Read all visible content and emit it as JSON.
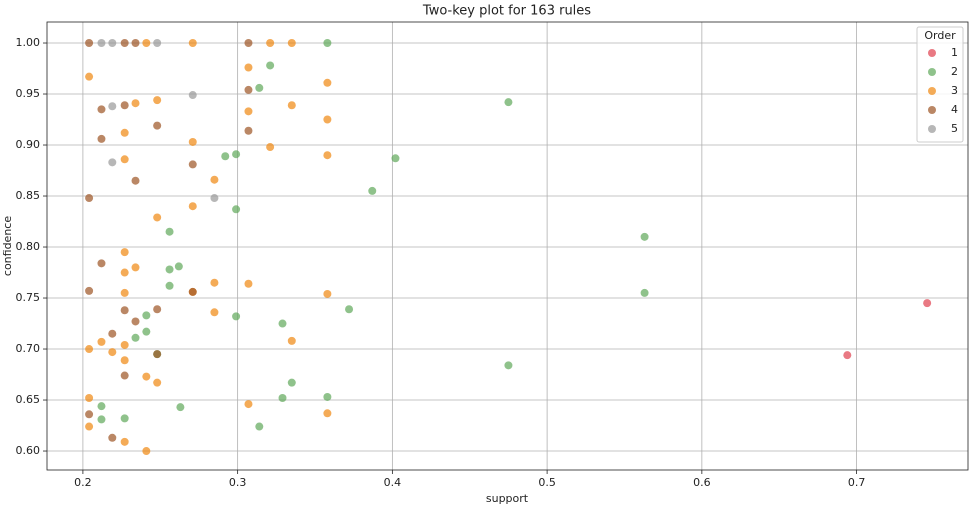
{
  "chart_data": {
    "type": "scatter",
    "title": "Two-key plot for 163 rules",
    "x_label": "support",
    "y_label": "confidence",
    "xlim": [
      0.1768,
      0.772
    ],
    "ylim": [
      0.5814,
      1.0206
    ],
    "xticks": [
      0.2,
      0.3,
      0.4,
      0.5,
      0.6,
      0.7
    ],
    "yticks": [
      {
        "value": 0.6,
        "label": "0.60"
      },
      {
        "value": 0.65,
        "label": "0.65"
      },
      {
        "value": 0.7,
        "label": "0.70"
      },
      {
        "value": 0.75,
        "label": "0.75"
      },
      {
        "value": 0.8,
        "label": "0.80"
      },
      {
        "value": 0.85,
        "label": "0.85"
      },
      {
        "value": 0.9,
        "label": "0.90"
      },
      {
        "value": 0.95,
        "label": "0.95"
      },
      {
        "value": 1.0,
        "label": "1.00"
      }
    ],
    "grid": true,
    "legend_title": "Order",
    "legend_position": "upper-right",
    "series": [
      {
        "name": "1",
        "color": "#e0404f",
        "x": [
          0.7456,
          0.694
        ],
        "values": [
          0.745,
          0.694
        ]
      },
      {
        "name": "2",
        "color": "#5fa85a",
        "x": [
          0.358,
          0.321,
          0.475,
          0.402,
          0.387,
          0.563,
          0.563,
          0.475,
          0.314,
          0.299,
          0.292,
          0.299,
          0.256,
          0.262,
          0.256,
          0.256,
          0.372,
          0.329,
          0.299,
          0.241,
          0.241,
          0.234,
          0.248,
          0.335,
          0.358,
          0.329,
          0.314,
          0.263,
          0.227,
          0.212,
          0.212
        ],
        "values": [
          1.0,
          0.978,
          0.942,
          0.887,
          0.855,
          0.81,
          0.755,
          0.684,
          0.956,
          0.891,
          0.889,
          0.837,
          0.815,
          0.781,
          0.778,
          0.762,
          0.739,
          0.725,
          0.732,
          0.733,
          0.717,
          0.711,
          0.695,
          0.667,
          0.653,
          0.652,
          0.624,
          0.643,
          0.632,
          0.644,
          0.631
        ]
      },
      {
        "name": "3",
        "color": "#f0880f",
        "x": [
          0.271,
          0.241,
          0.321,
          0.335,
          0.204,
          0.307,
          0.358,
          0.234,
          0.248,
          0.307,
          0.227,
          0.271,
          0.358,
          0.335,
          0.321,
          0.358,
          0.227,
          0.285,
          0.271,
          0.248,
          0.227,
          0.234,
          0.227,
          0.285,
          0.307,
          0.227,
          0.358,
          0.271,
          0.285,
          0.227,
          0.212,
          0.204,
          0.219,
          0.227,
          0.335,
          0.241,
          0.248,
          0.204,
          0.307,
          0.358,
          0.204,
          0.227,
          0.241
        ],
        "values": [
          1.0,
          1.0,
          1.0,
          1.0,
          0.967,
          0.976,
          0.961,
          0.941,
          0.944,
          0.933,
          0.912,
          0.903,
          0.925,
          0.939,
          0.898,
          0.89,
          0.886,
          0.866,
          0.84,
          0.829,
          0.795,
          0.78,
          0.775,
          0.765,
          0.764,
          0.755,
          0.754,
          0.756,
          0.736,
          0.704,
          0.707,
          0.7,
          0.697,
          0.689,
          0.708,
          0.673,
          0.667,
          0.652,
          0.646,
          0.637,
          0.624,
          0.609,
          0.6
        ]
      },
      {
        "name": "4",
        "color": "#9c5424",
        "x": [
          0.204,
          0.227,
          0.234,
          0.307,
          0.307,
          0.212,
          0.227,
          0.248,
          0.307,
          0.234,
          0.204,
          0.212,
          0.204,
          0.271,
          0.248,
          0.227,
          0.234,
          0.219,
          0.227,
          0.204,
          0.219,
          0.248,
          0.212,
          0.271
        ],
        "values": [
          1.0,
          1.0,
          1.0,
          1.0,
          0.954,
          0.935,
          0.939,
          0.919,
          0.914,
          0.865,
          0.848,
          0.784,
          0.757,
          0.756,
          0.739,
          0.738,
          0.727,
          0.715,
          0.674,
          0.636,
          0.613,
          0.695,
          0.906,
          0.881
        ]
      },
      {
        "name": "5",
        "color": "#999999",
        "x": [
          0.219,
          0.212,
          0.248,
          0.219,
          0.271,
          0.219,
          0.285
        ],
        "values": [
          1.0,
          1.0,
          1.0,
          0.938,
          0.949,
          0.883,
          0.848
        ]
      }
    ]
  }
}
